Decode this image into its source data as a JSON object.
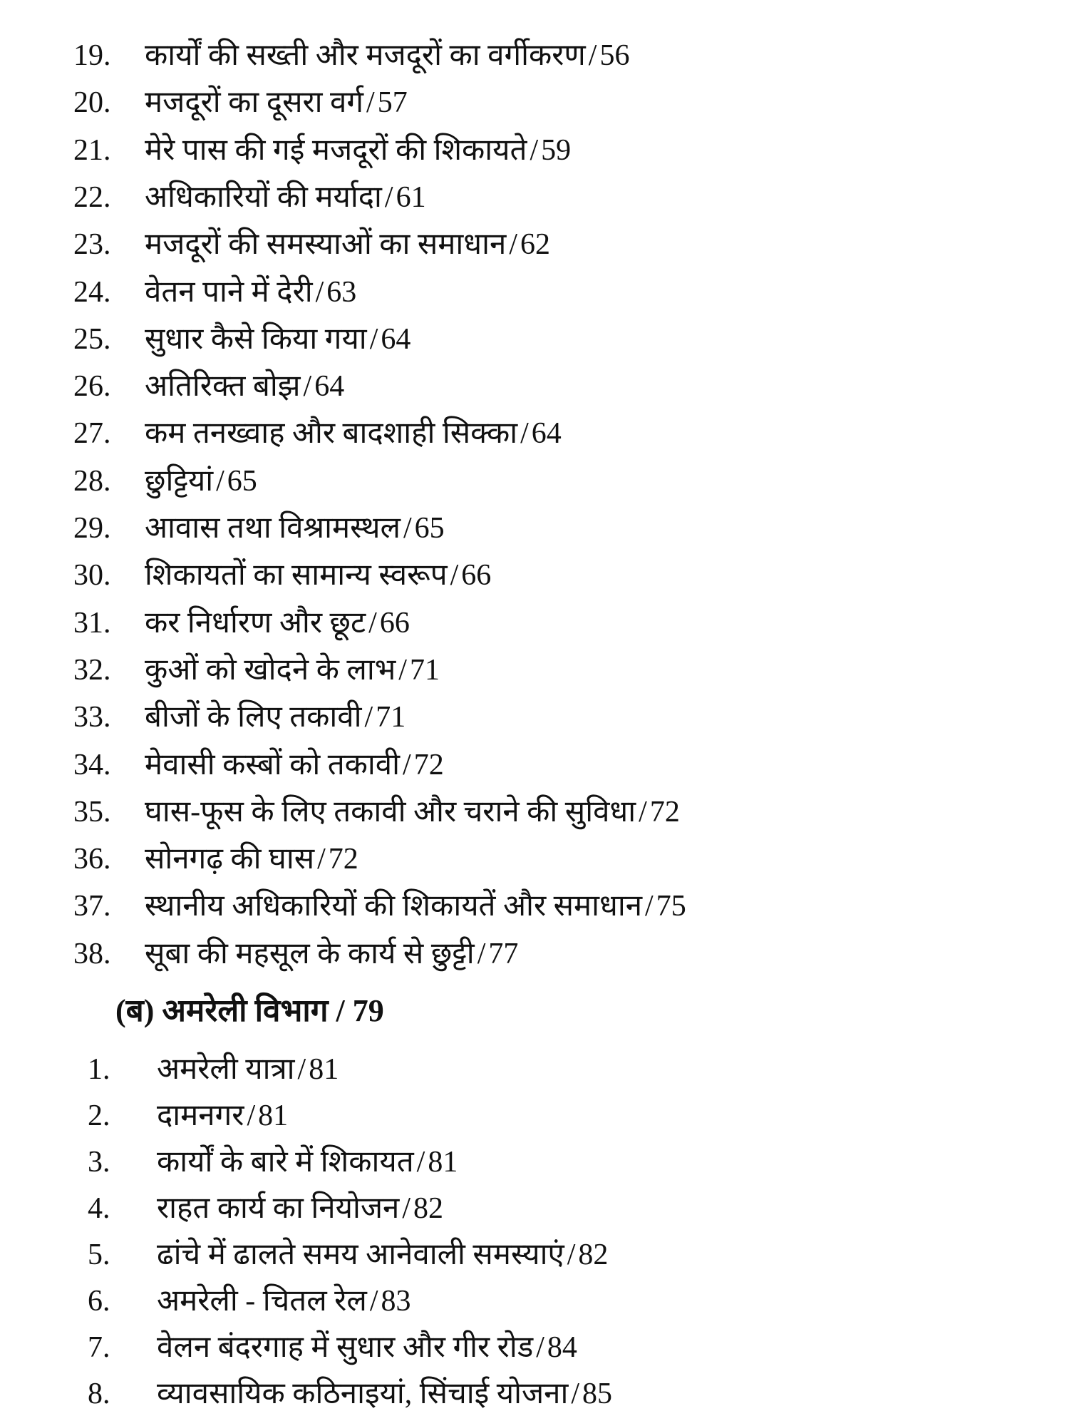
{
  "main_items": [
    {
      "num": "19.",
      "title": "कार्यों की सख्ती और मजदूरों का वर्गीकरण",
      "page": "56"
    },
    {
      "num": "20.",
      "title": "मजदूरों का दूसरा वर्ग",
      "page": "57"
    },
    {
      "num": "21.",
      "title": "मेरे पास की गई मजदूरों की शिकायते",
      "page": "59"
    },
    {
      "num": "22.",
      "title": "अधिकारियों की मर्यादा",
      "page": "61"
    },
    {
      "num": "23.",
      "title": "मजदूरों की समस्याओं का समाधान",
      "page": "62"
    },
    {
      "num": "24.",
      "title": "वेतन पाने में देरी",
      "page": "63"
    },
    {
      "num": "25.",
      "title": "सुधार कैसे किया गया",
      "page": "64"
    },
    {
      "num": "26.",
      "title": "अतिरिक्त बोझ",
      "page": "64"
    },
    {
      "num": "27.",
      "title": "कम तनख्वाह और बादशाही सिक्का",
      "page": "64"
    },
    {
      "num": "28.",
      "title": "छुट्टियां",
      "page": "65"
    },
    {
      "num": "29.",
      "title": "आवास तथा विश्रामस्थल",
      "page": "65"
    },
    {
      "num": "30.",
      "title": "शिकायतों का सामान्य स्वरूप",
      "page": "66"
    },
    {
      "num": "31.",
      "title": "कर निर्धारण और छूट",
      "page": "66"
    },
    {
      "num": "32.",
      "title": "कुओं को खोदने के लाभ",
      "page": "71"
    },
    {
      "num": "33.",
      "title": "बीजों के लिए तकावी",
      "page": "71"
    },
    {
      "num": "34.",
      "title": "मेवासी कस्बों को तकावी",
      "page": "72"
    },
    {
      "num": "35.",
      "title": "घास-फूस के लिए तकावी और चराने की सुविधा",
      "page": "72"
    },
    {
      "num": "36.",
      "title": "सोनगढ़ की घास",
      "page": "72"
    },
    {
      "num": "37.",
      "title": "स्थानीय अधिकारियों की शिकायतें और समाधान",
      "page": "75"
    },
    {
      "num": "38.",
      "title": "सूबा की महसूल के कार्य से छुट्टी",
      "page": "77"
    }
  ],
  "section_heading": {
    "title": "(ब) अमरेली विभाग",
    "page": "79"
  },
  "sub_items": [
    {
      "num": "1.",
      "title": "अमरेली यात्रा",
      "page": "81"
    },
    {
      "num": "2.",
      "title": "दामनगर",
      "page": "81"
    },
    {
      "num": "3.",
      "title": "कार्यों के बारे में शिकायत",
      "page": "81"
    },
    {
      "num": "4.",
      "title": "राहत कार्य का नियोजन",
      "page": "82"
    },
    {
      "num": "5.",
      "title": "ढांचे में ढालते समय आनेवाली समस्याएं",
      "page": "82"
    },
    {
      "num": "6.",
      "title": "अमरेली - चितल रेल",
      "page": "83"
    },
    {
      "num": "7.",
      "title": "वेलन बंदरगाह में सुधार और गीर रोड",
      "page": "84"
    },
    {
      "num": "8.",
      "title": "व्यावसायिक कठिनाइयां, सिंचाई योजना",
      "page": "85"
    }
  ],
  "separator": "/"
}
